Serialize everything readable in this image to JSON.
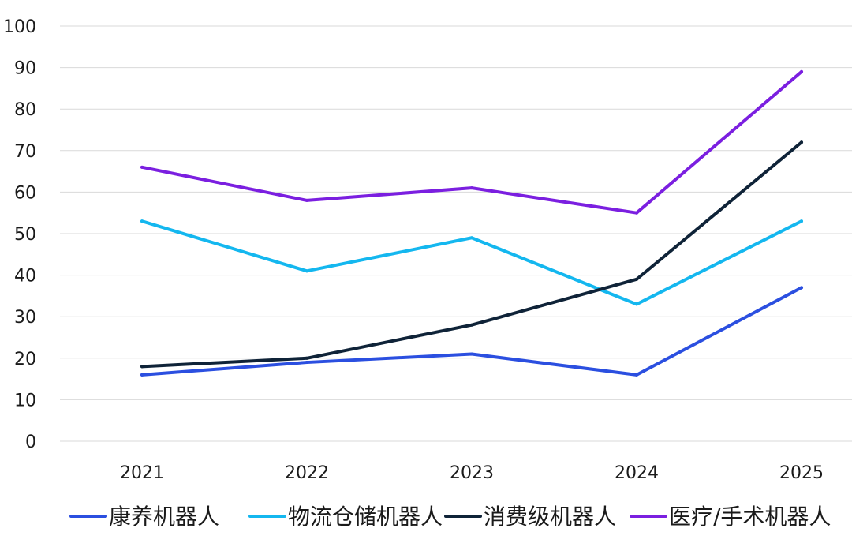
{
  "chart_data": {
    "type": "line",
    "title": "",
    "xlabel": "",
    "ylabel": "",
    "ylim": [
      0,
      100
    ],
    "yticks": [
      0,
      10,
      20,
      30,
      40,
      50,
      60,
      70,
      80,
      90,
      100
    ],
    "x": [
      "2021",
      "2022",
      "2023",
      "2024",
      "2025"
    ],
    "grid": "horizontal",
    "legend_position": "bottom",
    "series": [
      {
        "name": "康养机器人",
        "color": "#2b4fe0",
        "values": [
          16,
          19,
          21,
          16,
          37
        ]
      },
      {
        "name": "物流仓储机器人",
        "color": "#14b7ef",
        "values": [
          53,
          41,
          49,
          33,
          53
        ]
      },
      {
        "name": "消费级机器人",
        "color": "#0f2338",
        "values": [
          18,
          20,
          28,
          39,
          72
        ]
      },
      {
        "name": "医疗/手术机器人",
        "color": "#7b1fe0",
        "values": [
          66,
          58,
          61,
          55,
          89
        ]
      }
    ]
  }
}
